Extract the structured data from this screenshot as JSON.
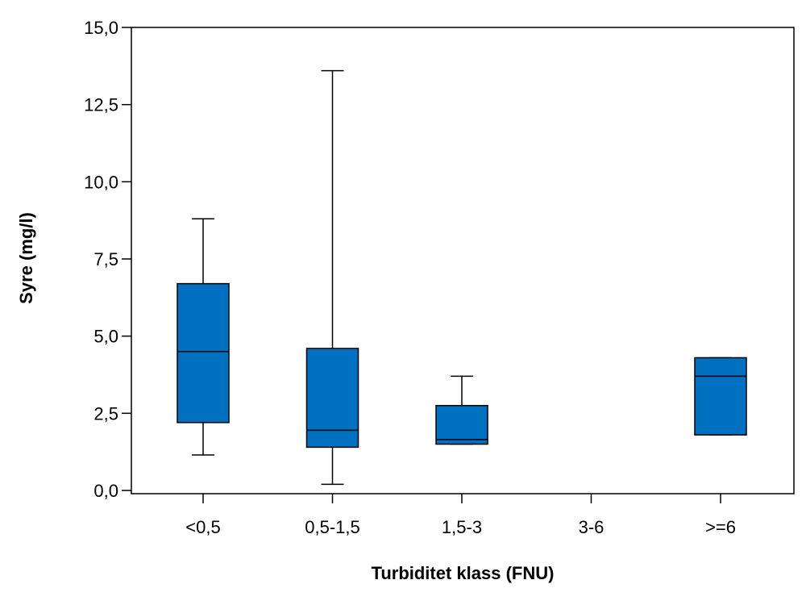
{
  "chart_data": {
    "type": "box",
    "xlabel": "Turbiditet klass (FNU)",
    "ylabel": "Syre (mg/l)",
    "ylim": [
      0,
      15
    ],
    "yticks": [
      "0,0",
      "2,5",
      "5,0",
      "7,5",
      "10,0",
      "12,5",
      "15,0"
    ],
    "ytick_values": [
      0,
      2.5,
      5,
      7.5,
      10,
      12.5,
      15
    ],
    "categories": [
      "<0,5",
      "0,5-1,5",
      "1,5-3",
      "3-6",
      ">=6"
    ],
    "boxes": [
      {
        "category": "<0,5",
        "min": 1.15,
        "q1": 2.2,
        "median": 4.5,
        "q3": 6.7,
        "max": 8.8
      },
      {
        "category": "0,5-1,5",
        "min": 0.2,
        "q1": 1.4,
        "median": 1.95,
        "q3": 4.6,
        "max": 13.6
      },
      {
        "category": "1,5-3",
        "min": 1.5,
        "q1": 1.5,
        "median": 1.65,
        "q3": 2.75,
        "max": 3.7
      },
      {
        "category": "3-6"
      },
      {
        "category": ">=6",
        "min": 1.8,
        "q1": 1.8,
        "median": 3.7,
        "q3": 4.3,
        "max": 4.3
      }
    ],
    "box_color": "#0070c0",
    "grid": false
  }
}
